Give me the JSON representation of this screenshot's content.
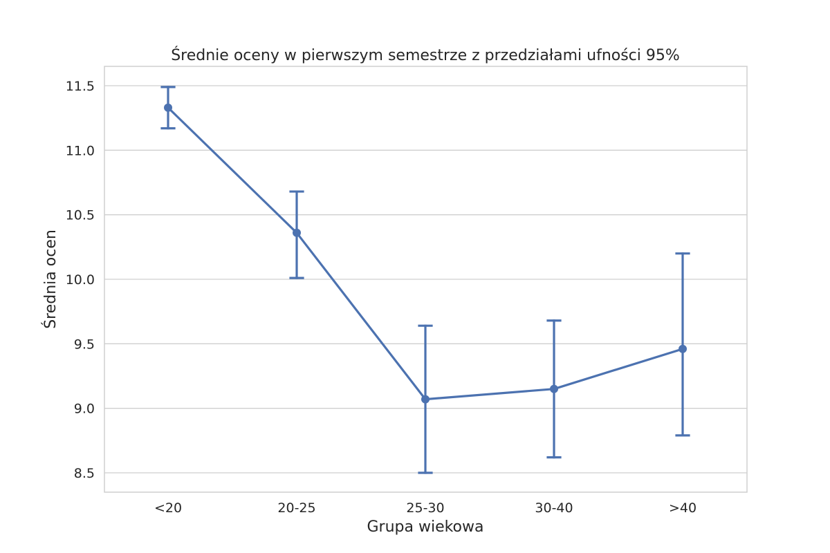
{
  "chart_data": {
    "type": "line",
    "title": "Średnie oceny w pierwszym semestrze z przedziałami ufności 95%",
    "xlabel": "Grupa wiekowa",
    "ylabel": "Średnia ocen",
    "categories": [
      "<20",
      "20-25",
      "25-30",
      "30-40",
      ">40"
    ],
    "series": [
      {
        "values": [
          11.33,
          10.36,
          9.07,
          9.15,
          9.46
        ],
        "ci_lower": [
          11.17,
          10.01,
          8.5,
          8.62,
          8.79
        ],
        "ci_upper": [
          11.49,
          10.68,
          9.64,
          9.68,
          10.2
        ]
      }
    ],
    "ylim": [
      8.35,
      11.65
    ],
    "yticks": [
      8.5,
      9.0,
      9.5,
      10.0,
      10.5,
      11.0,
      11.5
    ],
    "ytick_labels": [
      "8.5",
      "9.0",
      "9.5",
      "10.0",
      "10.5",
      "11.0",
      "11.5"
    ],
    "grid": true,
    "grid_axis": "y",
    "color": "#4c72b0"
  }
}
